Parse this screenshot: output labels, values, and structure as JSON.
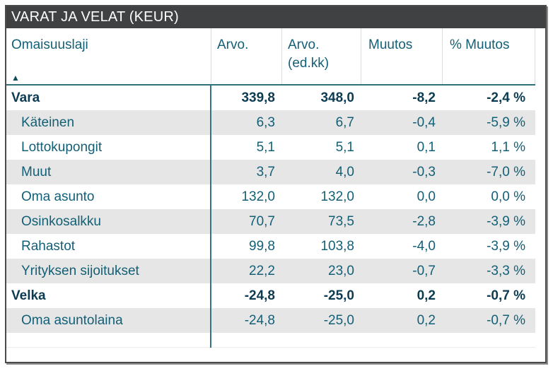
{
  "title_bar": {
    "title": "VARAT JA VELAT (KEUR)"
  },
  "icons": {
    "sort_ascending_glyph": "▲"
  },
  "colors": {
    "title_bar_bg": "#3f4142",
    "title_text": "#ffffff",
    "cell_text_teal": "#135f76",
    "total_text_navy": "#0d3c52",
    "divider_teal": "#34737f",
    "header_rule_teal": "#2f6f7e",
    "stripe_gray": "#e6e6e6",
    "outer_border": "#4a4a4a"
  },
  "chart_data": {
    "type": "table",
    "title": "VARAT JA VELAT (KEUR)",
    "columns": [
      "Omaisuuslaji",
      "Arvo.",
      "Arvo. (ed.kk)",
      "Muutos",
      "% Muutos"
    ],
    "sort": {
      "column": "Omaisuuslaji",
      "direction": "ascending"
    },
    "rows": [
      {
        "label": "Vara",
        "group_total": true,
        "values": [
          "339,8",
          "348,0",
          "-8,2",
          "-2,4 %"
        ]
      },
      {
        "label": "Käteinen",
        "group_total": false,
        "values": [
          "6,3",
          "6,7",
          "-0,4",
          "-5,9 %"
        ]
      },
      {
        "label": "Lottokupongit",
        "group_total": false,
        "values": [
          "5,1",
          "5,1",
          "0,1",
          "1,1 %"
        ]
      },
      {
        "label": "Muut",
        "group_total": false,
        "values": [
          "3,7",
          "4,0",
          "-0,3",
          "-7,0 %"
        ]
      },
      {
        "label": "Oma asunto",
        "group_total": false,
        "values": [
          "132,0",
          "132,0",
          "0,0",
          "0,0 %"
        ]
      },
      {
        "label": "Osinkosalkku",
        "group_total": false,
        "values": [
          "70,7",
          "73,5",
          "-2,8",
          "-3,9 %"
        ]
      },
      {
        "label": "Rahastot",
        "group_total": false,
        "values": [
          "99,8",
          "103,8",
          "-4,0",
          "-3,9 %"
        ]
      },
      {
        "label": "Yrityksen sijoitukset",
        "group_total": false,
        "values": [
          "22,2",
          "23,0",
          "-0,7",
          "-3,3 %"
        ]
      },
      {
        "label": "Velka",
        "group_total": true,
        "values": [
          "-24,8",
          "-25,0",
          "0,2",
          "-0,7 %"
        ]
      },
      {
        "label": "Oma asuntolaina",
        "group_total": false,
        "values": [
          "-24,8",
          "-25,0",
          "0,2",
          "-0,7 %"
        ]
      }
    ]
  }
}
